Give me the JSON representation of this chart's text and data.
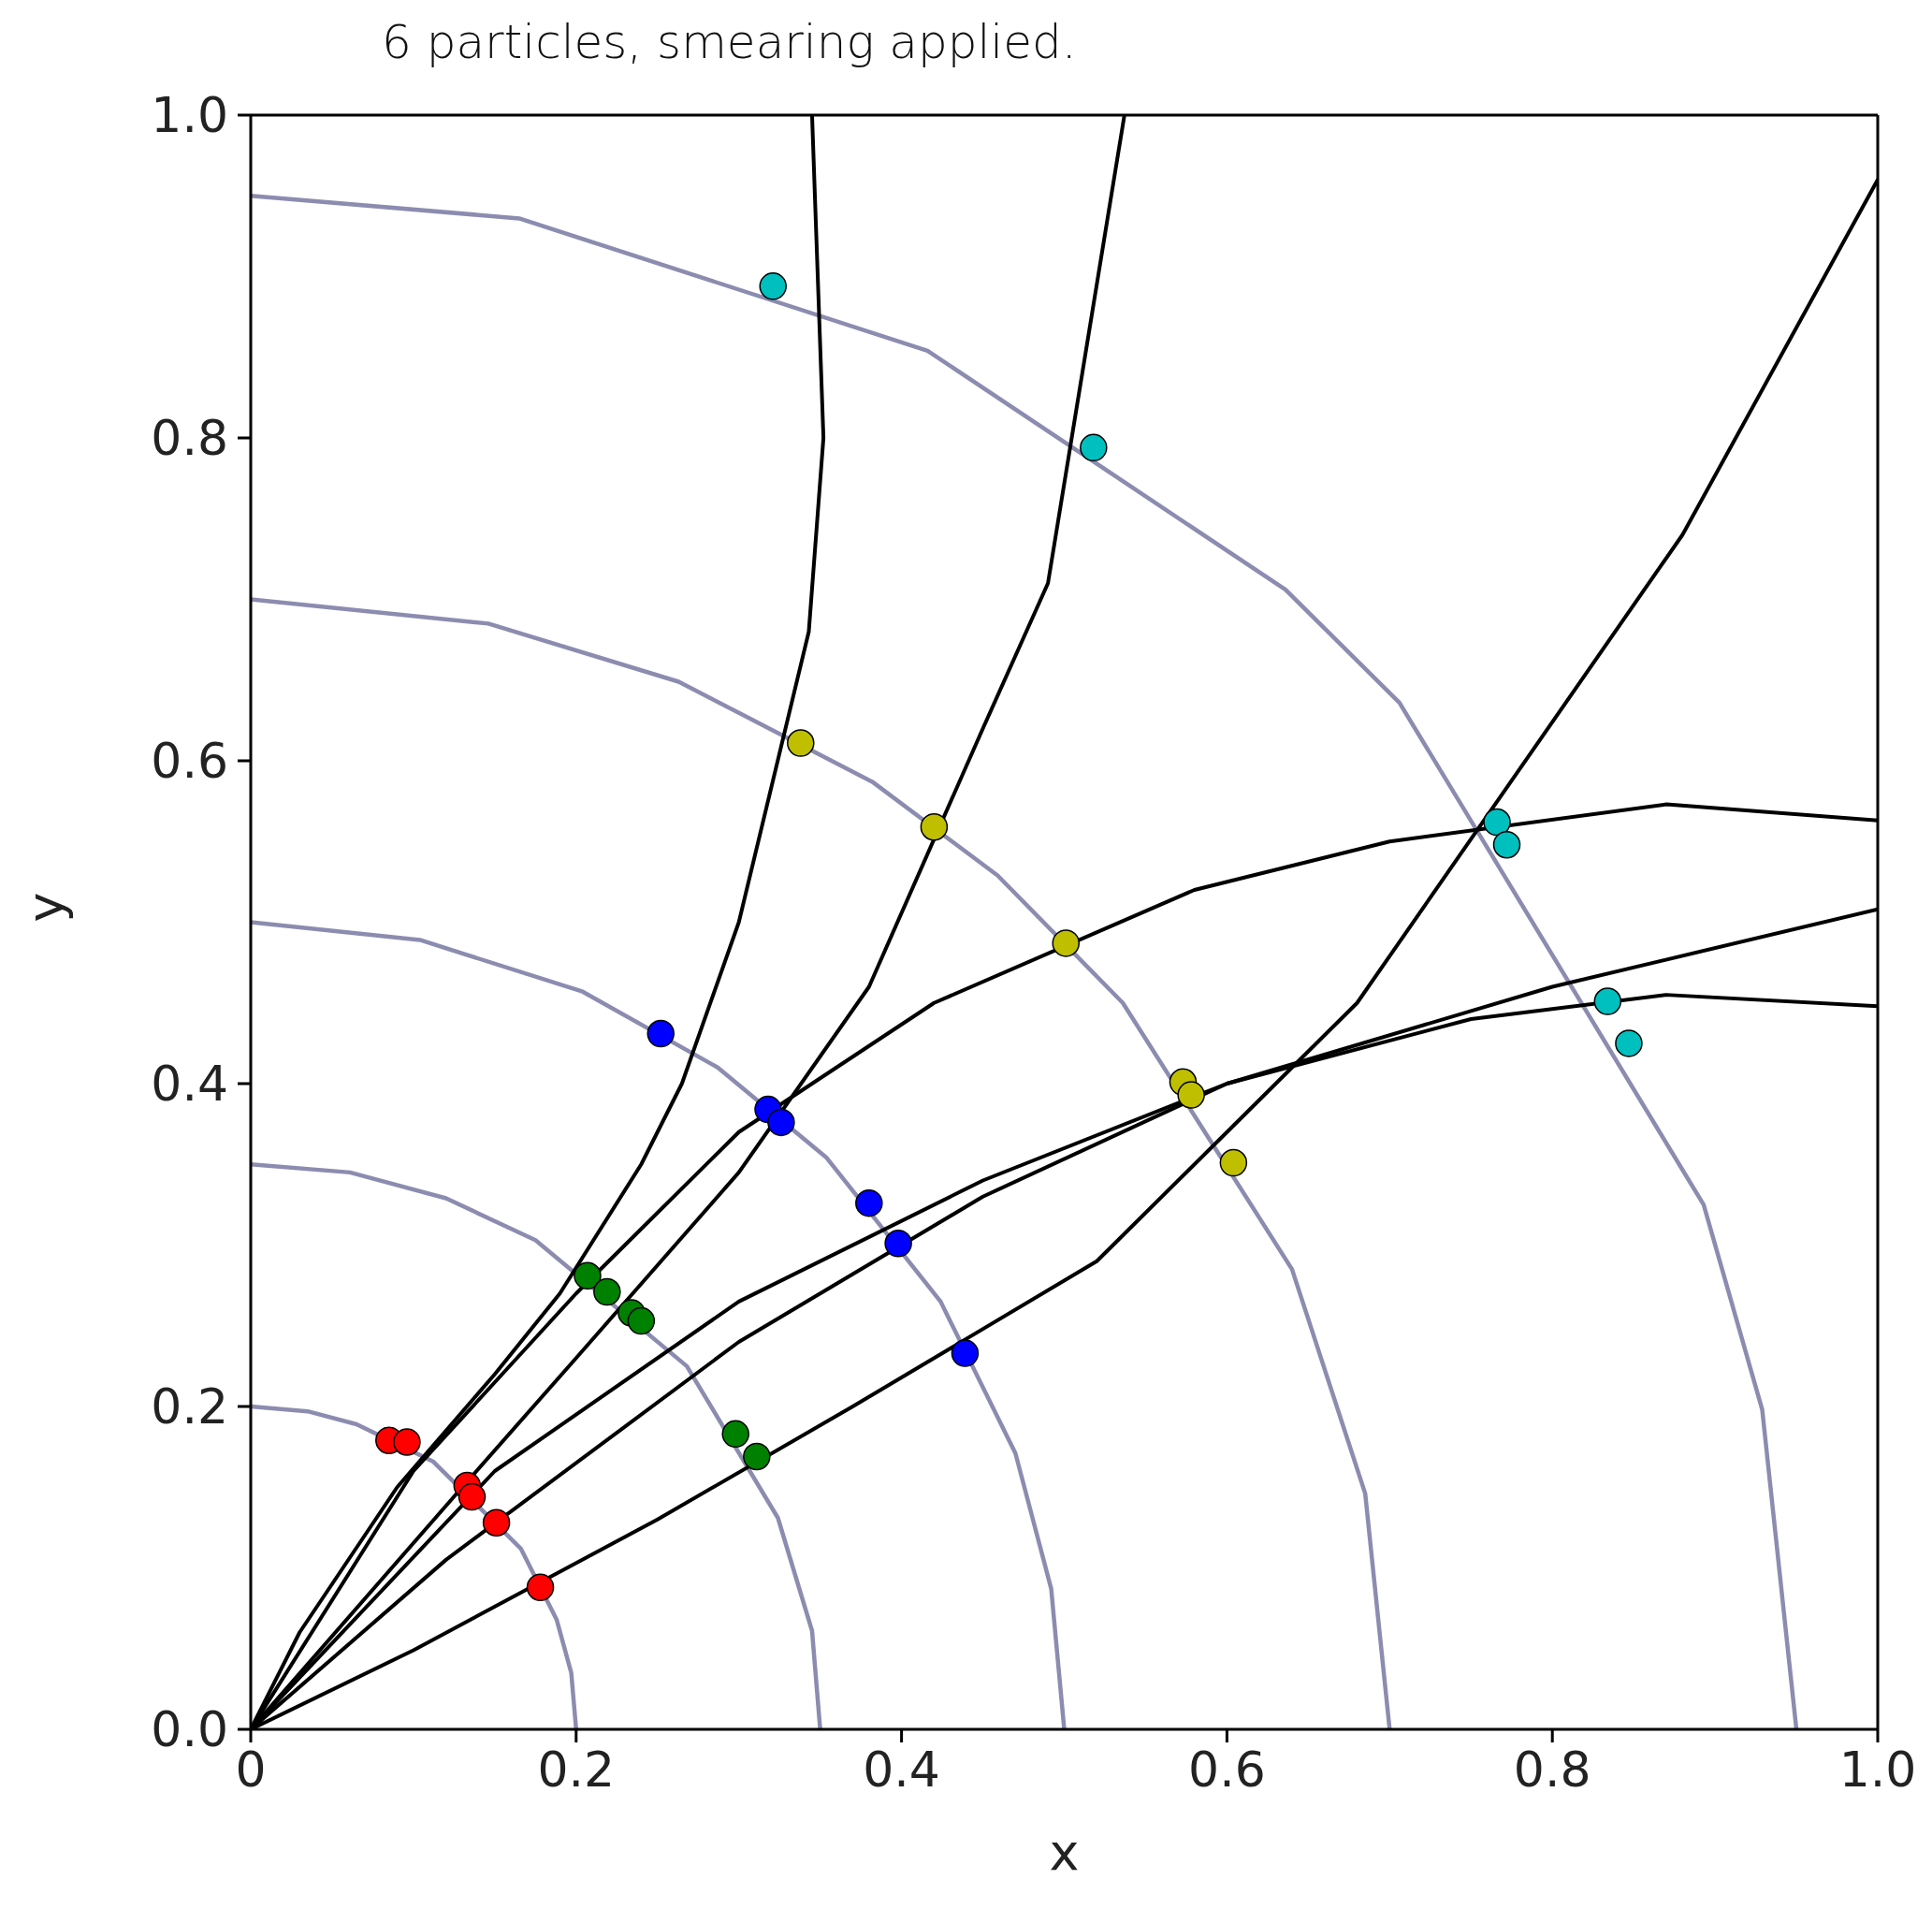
{
  "chart_data": {
    "type": "scatter",
    "title": "6 particles, smearing applied.",
    "xlabel": "x",
    "ylabel": "y",
    "xlim": [
      0,
      1
    ],
    "ylim": [
      0,
      1
    ],
    "xticks": [
      0,
      {
        "value": 0.2,
        "label": "0.2"
      },
      {
        "value": 0.4,
        "label": "0.4"
      },
      {
        "value": 0.6,
        "label": "0.6"
      },
      {
        "value": 0.8,
        "label": "0.8"
      },
      {
        "value": 1,
        "label": "1.0"
      }
    ],
    "yticks": [
      {
        "value": 0,
        "label": "0.0"
      },
      {
        "value": 0.2,
        "label": "0.2"
      },
      {
        "value": 0.4,
        "label": "0.4"
      },
      {
        "value": 0.6,
        "label": "0.6"
      },
      {
        "value": 0.8,
        "label": "0.8"
      },
      {
        "value": 1,
        "label": "1.0"
      }
    ],
    "grid": false,
    "legend": false,
    "marker": "circle",
    "line_style": "solid",
    "series": [
      {
        "type": "line",
        "marker": "none",
        "color": "#8c8cb0",
        "x": [
          0,
          0.035,
          0.065,
          0.112,
          0.166,
          0.188,
          0.197,
          0.2
        ],
        "values": [
          0.2,
          0.197,
          0.189,
          0.166,
          0.112,
          0.068,
          0.035,
          0
        ]
      },
      {
        "type": "line",
        "marker": "none",
        "color": "#8c8cb0",
        "x": [
          0,
          0.061,
          0.12,
          0.175,
          0.268,
          0.324,
          0.345,
          0.35
        ],
        "values": [
          0.35,
          0.345,
          0.329,
          0.303,
          0.225,
          0.131,
          0.061,
          0
        ]
      },
      {
        "type": "line",
        "marker": "none",
        "color": "#8c8cb0",
        "x": [
          0,
          0.104,
          0.204,
          0.287,
          0.354,
          0.424,
          0.47,
          0.492,
          0.5
        ],
        "values": [
          0.5,
          0.489,
          0.457,
          0.41,
          0.354,
          0.265,
          0.171,
          0.087,
          0
        ]
      },
      {
        "type": "line",
        "marker": "none",
        "color": "#8c8cb0",
        "x": [
          0,
          0.146,
          0.263,
          0.382,
          0.459,
          0.536,
          0.64,
          0.685,
          0.7
        ],
        "values": [
          0.7,
          0.685,
          0.649,
          0.587,
          0.529,
          0.45,
          0.285,
          0.146,
          0
        ]
      },
      {
        "type": "line",
        "marker": "none",
        "color": "#8c8cb0",
        "x": [
          0,
          0.165,
          0.416,
          0.636,
          0.706,
          0.893,
          0.929,
          0.95
        ],
        "values": [
          0.95,
          0.936,
          0.854,
          0.706,
          0.636,
          0.325,
          0.198,
          0
        ]
      },
      {
        "type": "line",
        "marker": "none",
        "color": "#000000",
        "x": [
          0,
          0.03,
          0.09,
          0.15,
          0.19,
          0.24,
          0.265,
          0.3,
          0.343,
          0.352,
          0.345
        ],
        "values": [
          0,
          0.06,
          0.15,
          0.22,
          0.27,
          0.35,
          0.4,
          0.5,
          0.68,
          0.8,
          1
        ]
      },
      {
        "type": "line",
        "marker": "none",
        "color": "#000000",
        "x": [
          0,
          0.13,
          0.2,
          0.3,
          0.38,
          0.45,
          0.49,
          0.537
        ],
        "values": [
          0,
          0.15,
          0.23,
          0.345,
          0.46,
          0.62,
          0.71,
          1
        ]
      },
      {
        "type": "line",
        "marker": "none",
        "color": "#000000",
        "x": [
          0,
          0.1,
          0.25,
          0.37,
          0.52,
          0.68,
          0.88,
          1
        ],
        "values": [
          0,
          0.049,
          0.13,
          0.2,
          0.29,
          0.45,
          0.74,
          0.96
        ]
      },
      {
        "type": "line",
        "marker": "none",
        "color": "#000000",
        "x": [
          0,
          0.1,
          0.2,
          0.3,
          0.42,
          0.58,
          0.7,
          0.87,
          1
        ],
        "values": [
          0,
          0.16,
          0.27,
          0.37,
          0.45,
          0.52,
          0.55,
          0.573,
          0.563
        ]
      },
      {
        "type": "line",
        "marker": "none",
        "color": "#000000",
        "x": [
          0,
          0.15,
          0.3,
          0.45,
          0.6,
          0.8,
          1
        ],
        "values": [
          0,
          0.16,
          0.265,
          0.34,
          0.4,
          0.46,
          0.508
        ]
      },
      {
        "type": "line",
        "marker": "none",
        "color": "#000000",
        "x": [
          0,
          0.12,
          0.3,
          0.45,
          0.6,
          0.75,
          0.87,
          1
        ],
        "values": [
          0,
          0.105,
          0.24,
          0.33,
          0.4,
          0.44,
          0.455,
          0.448
        ]
      },
      {
        "color": "#ff0000",
        "x": [
          0.085,
          0.096,
          0.133,
          0.136,
          0.151,
          0.178
        ],
        "values": [
          0.179,
          0.178,
          0.151,
          0.144,
          0.128,
          0.088
        ]
      },
      {
        "color": "#008000",
        "x": [
          0.207,
          0.219,
          0.234,
          0.24,
          0.298,
          0.311
        ],
        "values": [
          0.281,
          0.271,
          0.258,
          0.253,
          0.183,
          0.169
        ]
      },
      {
        "color": "#0000ff",
        "x": [
          0.252,
          0.318,
          0.326,
          0.38,
          0.398,
          0.439
        ],
        "values": [
          0.431,
          0.384,
          0.376,
          0.326,
          0.301,
          0.233
        ]
      },
      {
        "color": "#bfbf00",
        "x": [
          0.338,
          0.42,
          0.501,
          0.573,
          0.578,
          0.604
        ],
        "values": [
          0.611,
          0.559,
          0.487,
          0.401,
          0.393,
          0.351
        ]
      },
      {
        "color": "#00bfbf",
        "x": [
          0.321,
          0.518,
          0.766,
          0.772,
          0.834,
          0.847
        ],
        "values": [
          0.894,
          0.794,
          0.562,
          0.548,
          0.451,
          0.425
        ]
      }
    ]
  }
}
